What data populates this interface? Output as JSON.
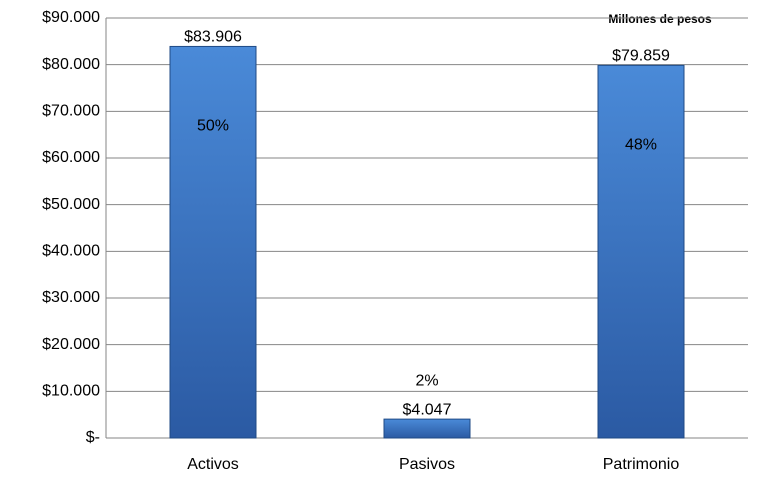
{
  "chart_data": {
    "type": "bar",
    "annotation": "Millones de pesos",
    "categories": [
      "Activos",
      "Pasivos",
      "Patrimonio"
    ],
    "values": [
      83906,
      4047,
      79859
    ],
    "value_labels": [
      "$83.906",
      "$4.047",
      "$79.859"
    ],
    "share_labels": [
      "50%",
      "2%",
      "48%"
    ],
    "color": "#3f7bcb",
    "ylim": [
      0,
      90000
    ],
    "yticks": [
      {
        "value": 0,
        "label": "$-"
      },
      {
        "value": 10000,
        "label": "$10.000"
      },
      {
        "value": 20000,
        "label": "$20.000"
      },
      {
        "value": 30000,
        "label": "$30.000"
      },
      {
        "value": 40000,
        "label": "$40.000"
      },
      {
        "value": 50000,
        "label": "$50.000"
      },
      {
        "value": 60000,
        "label": "$60.000"
      },
      {
        "value": 70000,
        "label": "$70.000"
      },
      {
        "value": 80000,
        "label": "$80.000"
      },
      {
        "value": 90000,
        "label": "$90.000"
      }
    ],
    "grid": true
  }
}
